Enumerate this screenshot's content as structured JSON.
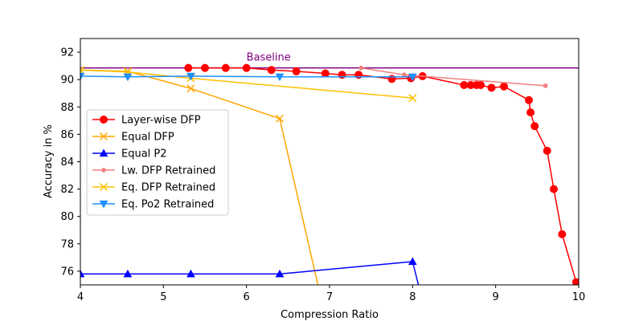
{
  "chart_data": {
    "type": "line",
    "title": "",
    "xlabel": "Compression Ratio",
    "ylabel": "Accuracy in %",
    "xlim": [
      4,
      10
    ],
    "ylim": [
      75,
      93
    ],
    "xticks": [
      4,
      5,
      6,
      7,
      8,
      9,
      10
    ],
    "yticks": [
      76,
      78,
      80,
      82,
      84,
      86,
      88,
      90,
      92
    ],
    "grid": false,
    "legend_position": "center-left",
    "baseline": {
      "label": "Baseline",
      "value": 90.85,
      "color": "#800080",
      "label_x": 6.0
    },
    "series": [
      {
        "name": "Layer-wise DFP",
        "color": "#ff0000",
        "marker": "circle",
        "x": [
          5.3,
          5.5,
          5.75,
          6.0,
          6.3,
          6.6,
          6.95,
          7.15,
          7.35,
          7.75,
          7.98,
          8.12,
          8.62,
          8.7,
          8.77,
          8.82,
          8.95,
          9.1,
          9.4,
          9.42,
          9.47,
          9.62,
          9.7,
          9.8,
          9.97
        ],
        "y": [
          90.85,
          90.85,
          90.85,
          90.85,
          90.7,
          90.6,
          90.45,
          90.35,
          90.35,
          90.05,
          90.1,
          90.25,
          89.6,
          89.6,
          89.6,
          89.6,
          89.4,
          89.5,
          88.5,
          87.6,
          86.6,
          84.8,
          82.0,
          78.7,
          75.2
        ]
      },
      {
        "name": "Equal DFP",
        "color": "#ffa500",
        "marker": "x",
        "x": [
          4.0,
          4.57,
          5.33,
          6.4,
          6.86
        ],
        "y": [
          90.7,
          90.6,
          89.35,
          87.15,
          75.0
        ]
      },
      {
        "name": "Equal P2",
        "color": "#0000ff",
        "marker": "triangle-up",
        "x": [
          4.0,
          4.57,
          5.33,
          6.4,
          8.0,
          8.07
        ],
        "y": [
          75.8,
          75.8,
          75.8,
          75.8,
          76.7,
          75.0
        ]
      },
      {
        "name": "Lw. DFP Retrained",
        "color": "#f08080",
        "marker": "small-dot",
        "x": [
          7.38,
          7.9,
          9.6
        ],
        "y": [
          90.85,
          90.35,
          89.55
        ]
      },
      {
        "name": "Eq. DFP Retrained",
        "color": "#ffc000",
        "marker": "x",
        "x": [
          4.0,
          4.57,
          5.33,
          8.0
        ],
        "y": [
          90.7,
          90.55,
          90.1,
          88.65
        ]
      },
      {
        "name": "Eq. Po2 Retrained",
        "color": "#1e90ff",
        "marker": "triangle-down",
        "x": [
          4.0,
          4.57,
          5.33,
          6.4,
          8.0
        ],
        "y": [
          90.25,
          90.2,
          90.25,
          90.2,
          90.2
        ]
      }
    ]
  }
}
